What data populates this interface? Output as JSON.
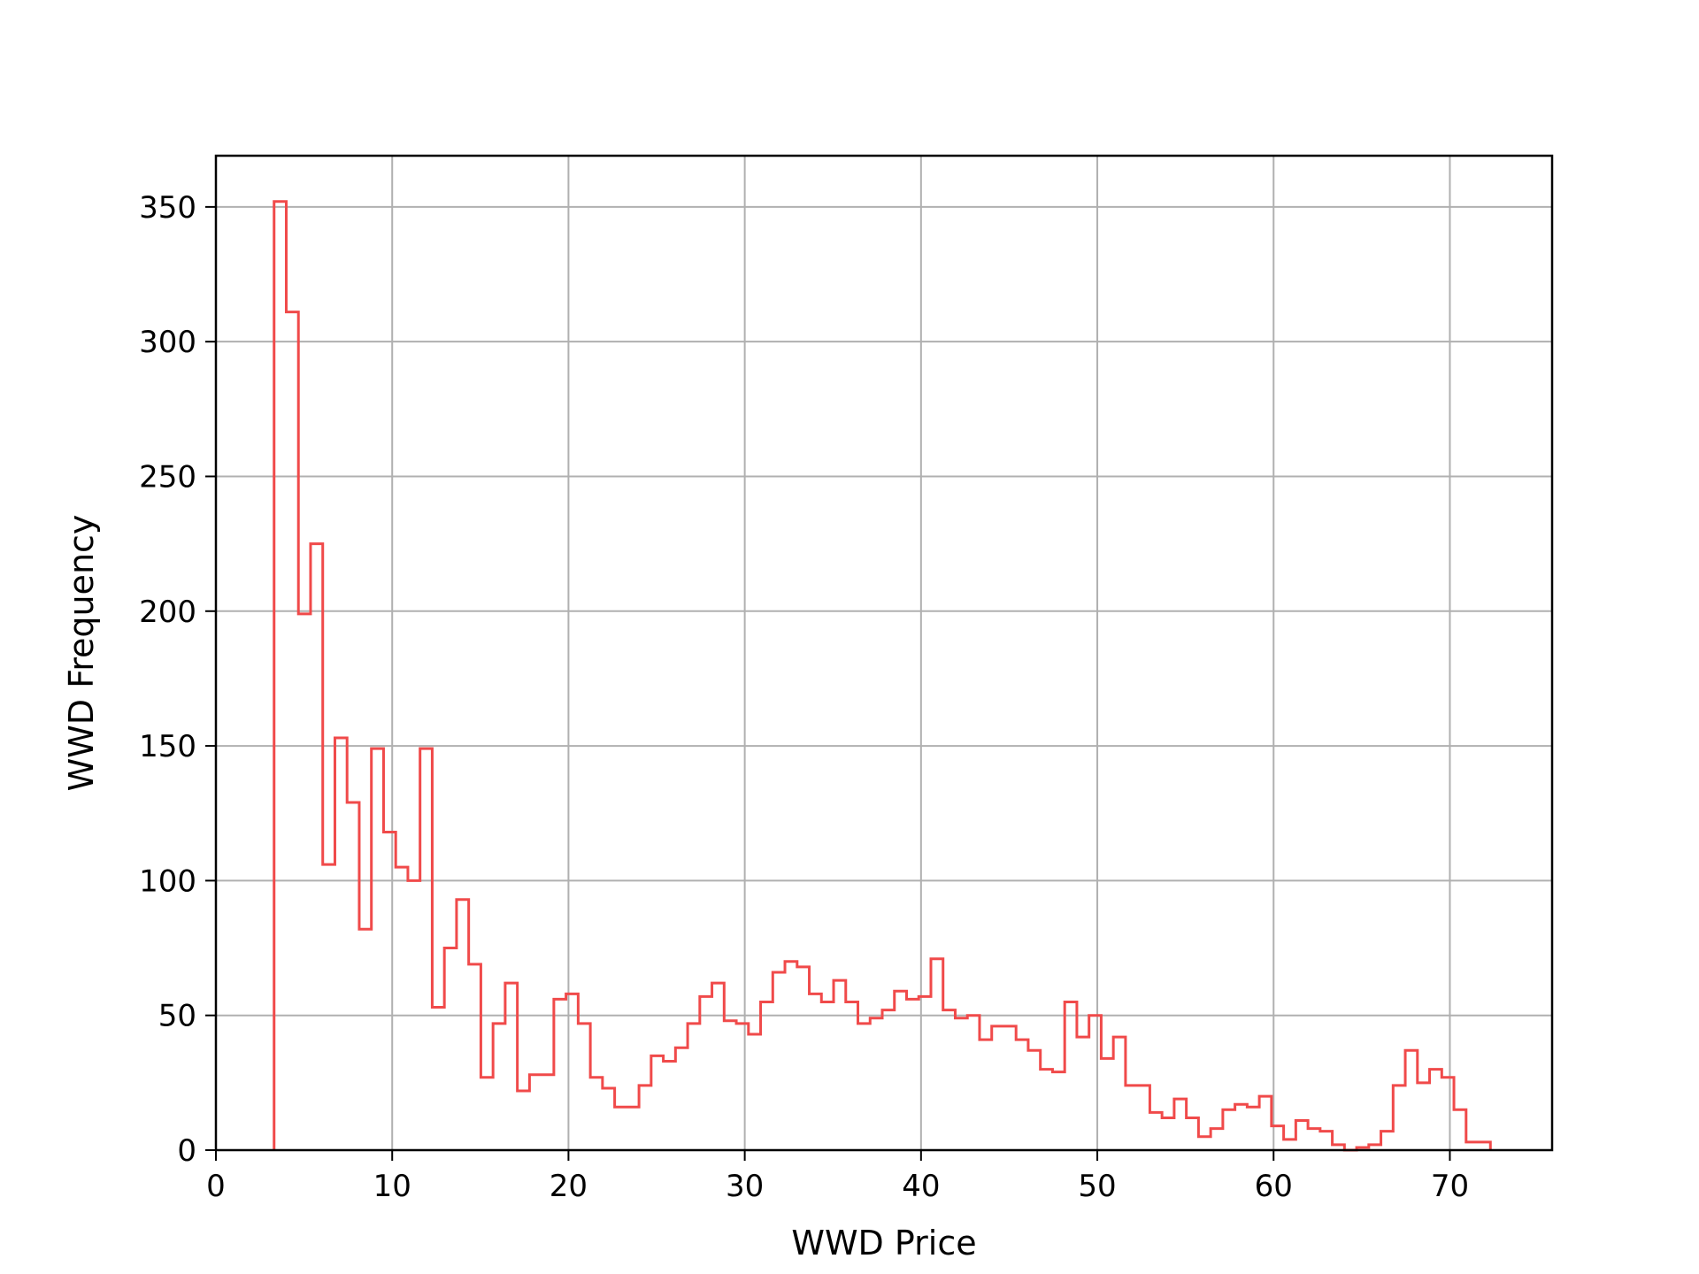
{
  "chart_data": {
    "type": "histogram",
    "histtype": "step",
    "title": "",
    "xlabel": "WWD Price",
    "ylabel": "WWD Frequency",
    "xlim": [
      0,
      75.8
    ],
    "ylim": [
      0,
      369
    ],
    "xticks": [
      0,
      10,
      20,
      30,
      40,
      50,
      60,
      70
    ],
    "yticks": [
      0,
      50,
      100,
      150,
      200,
      250,
      300,
      350
    ],
    "grid": true,
    "legend": "none",
    "color": "#f04a4a",
    "bin_start": 3.3,
    "bin_width": 0.69,
    "series": [
      {
        "values": [
          352,
          311,
          199,
          225,
          106,
          153,
          129,
          82,
          149,
          118,
          105,
          100,
          149,
          53,
          75,
          93,
          69,
          27,
          47,
          62,
          22,
          28,
          28,
          56,
          58,
          47,
          27,
          23,
          16,
          16,
          24,
          35,
          33,
          38,
          47,
          57,
          62,
          48,
          47,
          43,
          55,
          66,
          70,
          68,
          58,
          55,
          63,
          55,
          47,
          49,
          52,
          59,
          56,
          57,
          71,
          52,
          49,
          50,
          41,
          46,
          46,
          41,
          37,
          30,
          29,
          55,
          42,
          50,
          34,
          42,
          24,
          24,
          14,
          12,
          19,
          12,
          5,
          8,
          15,
          17,
          16,
          20,
          9,
          4,
          11,
          8,
          7,
          2,
          0,
          1,
          2,
          7,
          24,
          37,
          25,
          30,
          27,
          15,
          3,
          3
        ]
      }
    ]
  }
}
